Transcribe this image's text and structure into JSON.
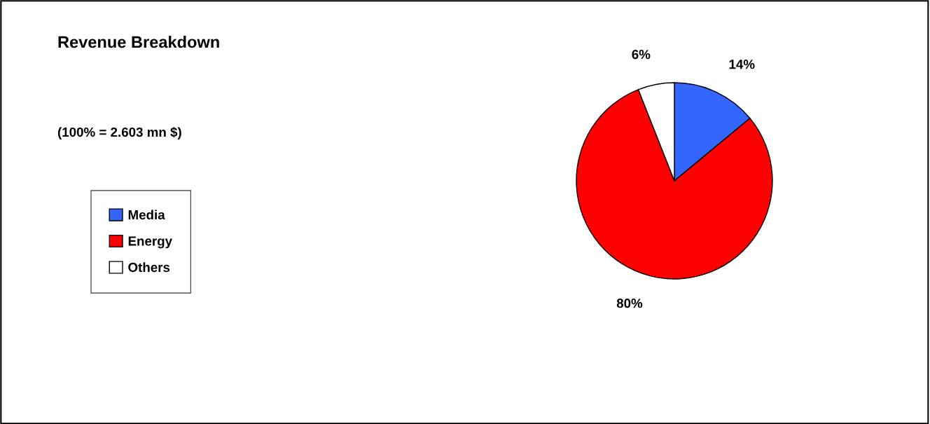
{
  "chart_data": {
    "type": "pie",
    "title": "Revenue Breakdown",
    "subtitle": "(100% = 2.603 mn $)",
    "categories": [
      "Media",
      "Energy",
      "Others"
    ],
    "values": [
      14,
      80,
      6
    ],
    "colors": [
      "#3366ff",
      "#ff0000",
      "#ffffff"
    ],
    "value_labels": [
      "14%",
      "80%",
      "6%"
    ],
    "legend": "left"
  }
}
